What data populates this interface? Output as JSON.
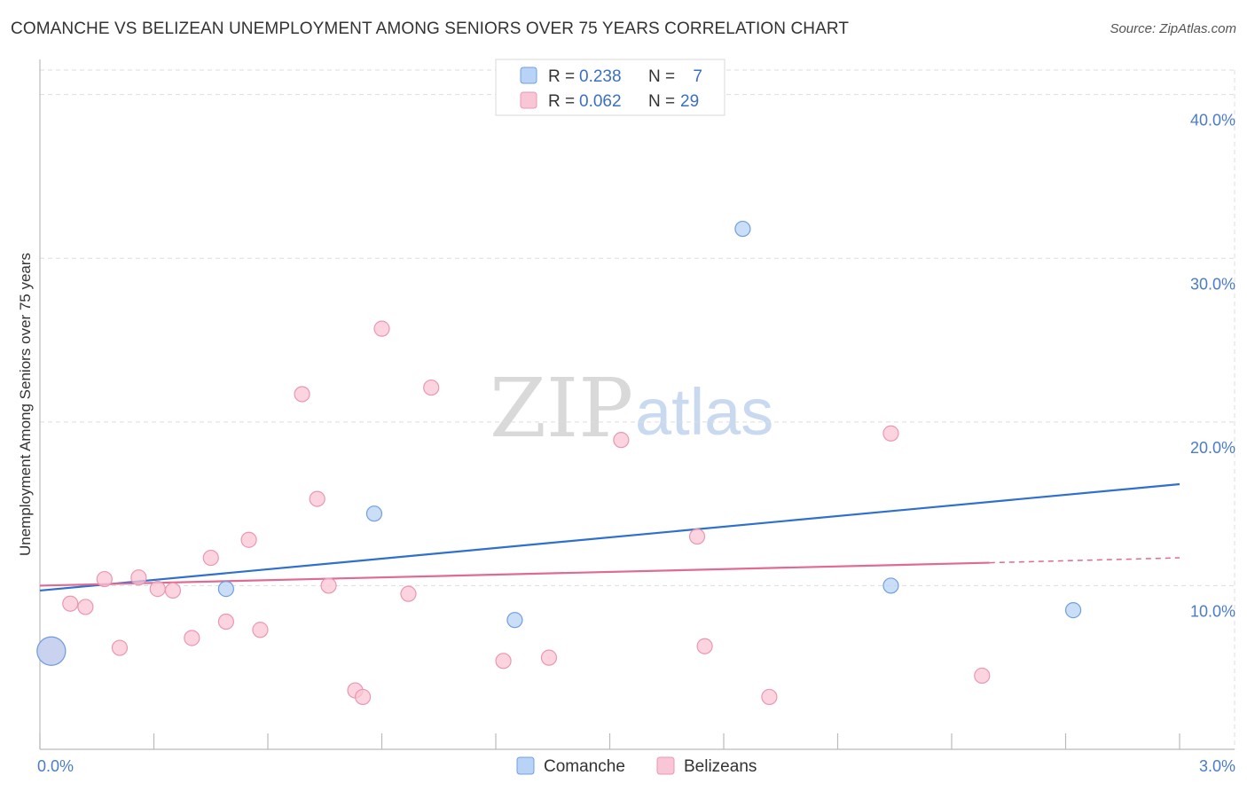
{
  "title": "COMANCHE VS BELIZEAN UNEMPLOYMENT AMONG SENIORS OVER 75 YEARS CORRELATION CHART",
  "source": "Source: ZipAtlas.com",
  "watermark": {
    "part1": "ZIP",
    "part2": "atlas"
  },
  "colors": {
    "comanche_fill": "#b8d3f5",
    "comanche_stroke": "#6f9fe0",
    "comanche_line": "#2f6fcf",
    "belizean_fill": "#f9c6d6",
    "belizean_stroke": "#ea97b2",
    "belizean_line": "#e06a92",
    "grid": "#dddddd",
    "axis_label": "#4a7cc9"
  },
  "legend": {
    "rows": [
      {
        "r_label": "R =",
        "r_value": "0.238",
        "n_label": "N =",
        "n_value": "7"
      },
      {
        "r_label": "R =",
        "r_value": "0.062",
        "n_label": "N =",
        "n_value": "29"
      }
    ]
  },
  "bottom_legend": [
    "Comanche",
    "Belizeans"
  ],
  "chart_data": {
    "type": "scatter",
    "title": "COMANCHE VS BELIZEAN UNEMPLOYMENT AMONG SENIORS OVER 75 YEARS CORRELATION CHART",
    "xlabel": "",
    "ylabel": "Unemployment Among Seniors over 75 years",
    "xlim": [
      0,
      3.0
    ],
    "ylim": [
      0,
      41.5
    ],
    "x_tick_labels": [
      "0.0%",
      "3.0%"
    ],
    "y_ticks": [
      10,
      20,
      30,
      40
    ],
    "y_tick_labels": [
      "10.0%",
      "20.0%",
      "30.0%",
      "40.0%"
    ],
    "legend_position": "top-center",
    "series": [
      {
        "name": "Comanche",
        "r": 0.238,
        "n": 7,
        "points": [
          {
            "x": 0.03,
            "y": 6.0,
            "size": "large"
          },
          {
            "x": 0.49,
            "y": 9.8
          },
          {
            "x": 0.88,
            "y": 14.4
          },
          {
            "x": 1.25,
            "y": 7.9
          },
          {
            "x": 1.85,
            "y": 31.8
          },
          {
            "x": 2.24,
            "y": 10.0
          },
          {
            "x": 2.72,
            "y": 8.5
          }
        ],
        "trend": {
          "x0": 0.0,
          "y0": 9.7,
          "x1": 3.0,
          "y1": 16.2
        }
      },
      {
        "name": "Belizeans",
        "r": 0.062,
        "n": 29,
        "points": [
          {
            "x": 0.03,
            "y": 6.0,
            "size": "large"
          },
          {
            "x": 0.08,
            "y": 8.9
          },
          {
            "x": 0.12,
            "y": 8.7
          },
          {
            "x": 0.17,
            "y": 10.4
          },
          {
            "x": 0.21,
            "y": 6.2
          },
          {
            "x": 0.26,
            "y": 10.5
          },
          {
            "x": 0.31,
            "y": 9.8
          },
          {
            "x": 0.35,
            "y": 9.7
          },
          {
            "x": 0.4,
            "y": 6.8
          },
          {
            "x": 0.45,
            "y": 11.7
          },
          {
            "x": 0.49,
            "y": 7.8
          },
          {
            "x": 0.55,
            "y": 12.8
          },
          {
            "x": 0.58,
            "y": 7.3
          },
          {
            "x": 0.69,
            "y": 21.7
          },
          {
            "x": 0.73,
            "y": 15.3
          },
          {
            "x": 0.76,
            "y": 10.0
          },
          {
            "x": 0.83,
            "y": 3.6
          },
          {
            "x": 0.85,
            "y": 3.2
          },
          {
            "x": 0.9,
            "y": 25.7
          },
          {
            "x": 0.97,
            "y": 9.5
          },
          {
            "x": 1.03,
            "y": 22.1
          },
          {
            "x": 1.22,
            "y": 5.4
          },
          {
            "x": 1.34,
            "y": 5.6
          },
          {
            "x": 1.53,
            "y": 18.9
          },
          {
            "x": 1.73,
            "y": 13.0
          },
          {
            "x": 1.75,
            "y": 6.3
          },
          {
            "x": 1.92,
            "y": 3.2
          },
          {
            "x": 2.24,
            "y": 19.3
          },
          {
            "x": 2.48,
            "y": 4.5
          }
        ],
        "trend": {
          "x0": 0.0,
          "y0": 10.0,
          "x1": 2.5,
          "y1": 11.4
        },
        "trend_dashed_extension": {
          "x0": 2.5,
          "y0": 11.4,
          "x1": 3.0,
          "y1": 11.7
        }
      }
    ]
  }
}
